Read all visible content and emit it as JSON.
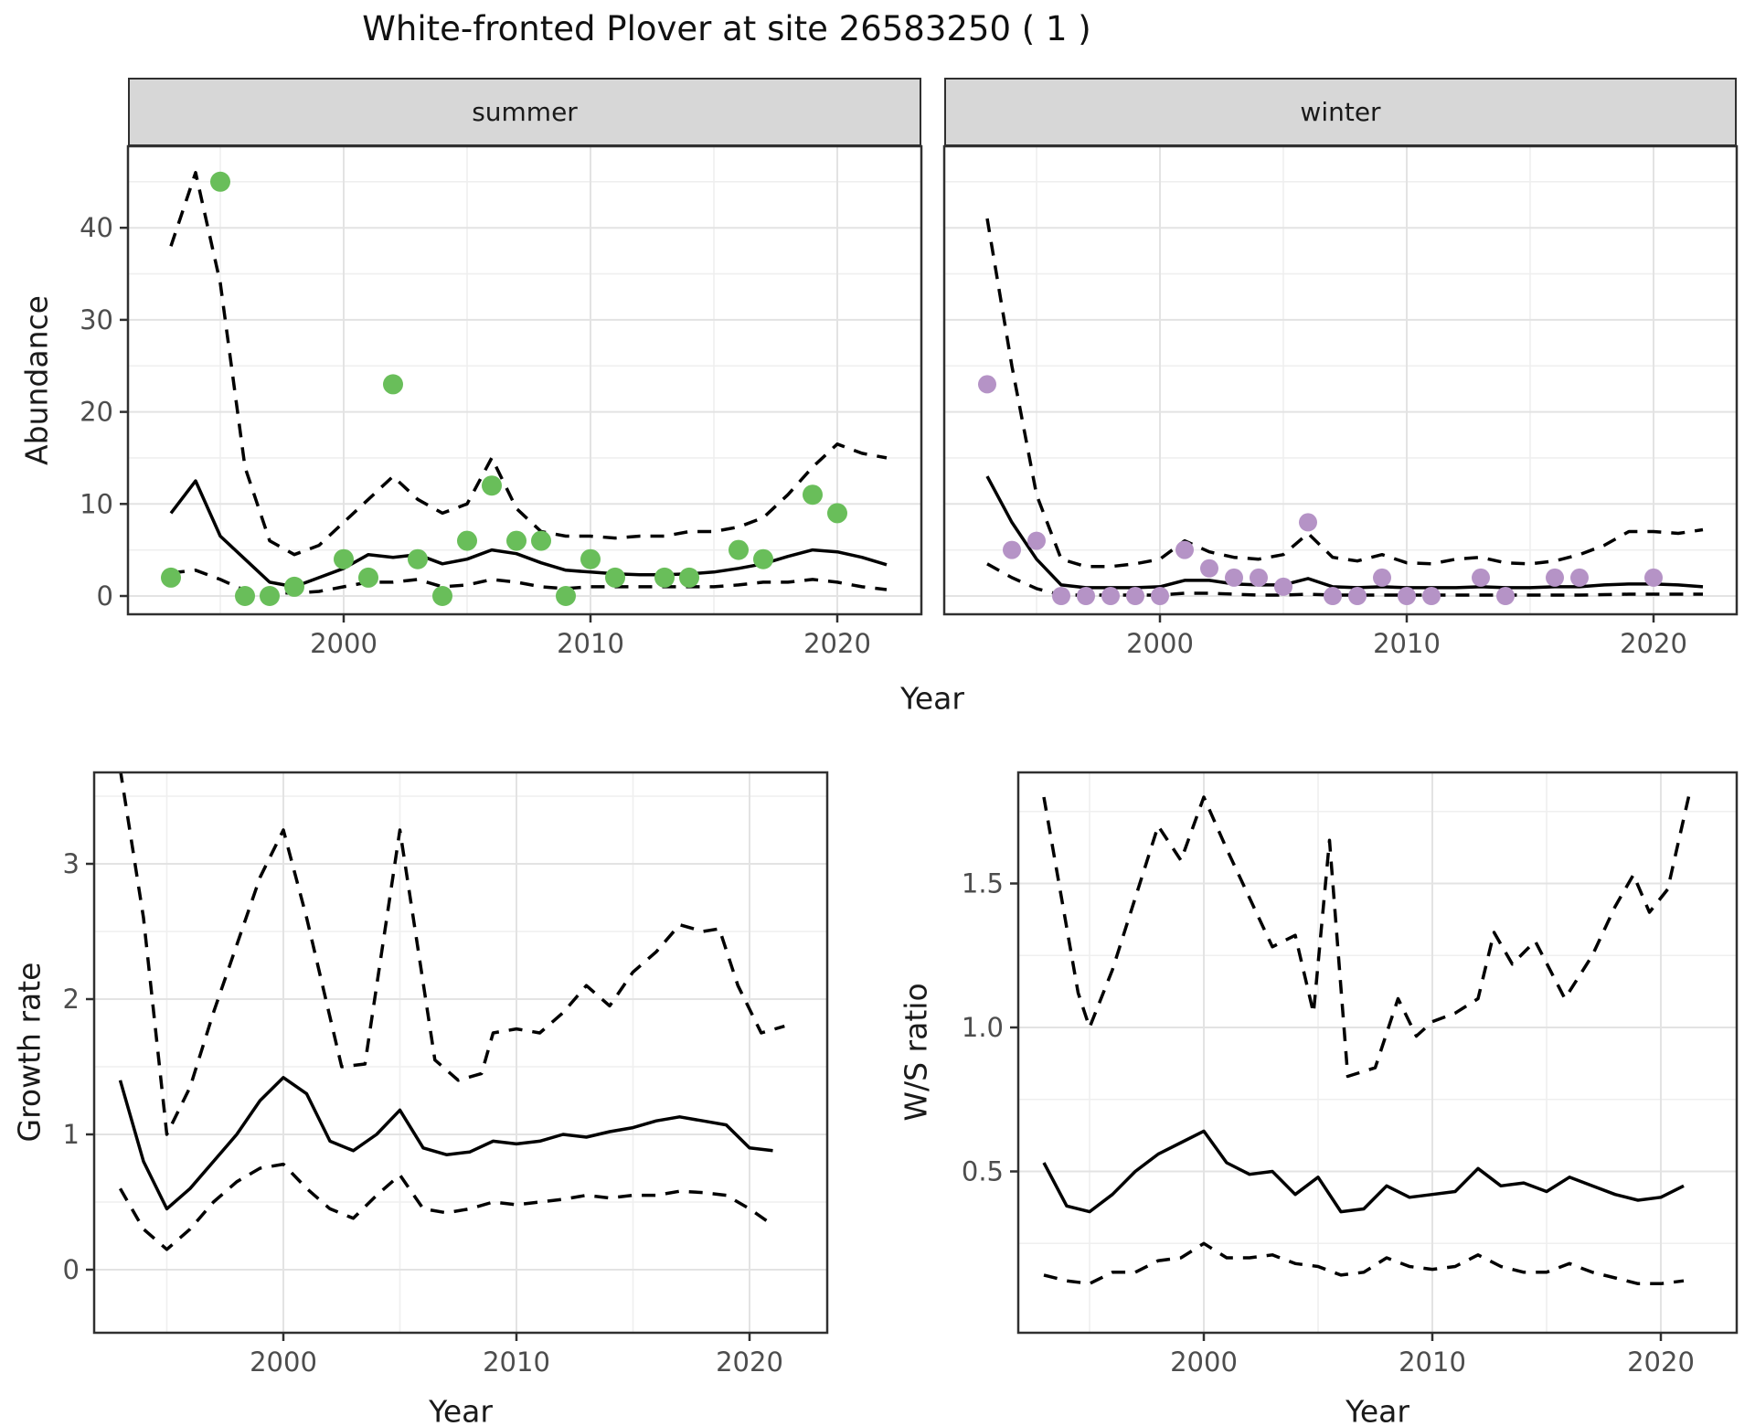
{
  "page": {
    "title": "White-fronted Plover at site 26583250 ( 1 )"
  },
  "colors": {
    "summer_point": "#69be5a",
    "winter_point": "#b593c6",
    "line": "#000000",
    "grid_major": "#e3e3e3",
    "grid_minor": "#efefef",
    "strip_bg": "#d7d7d7",
    "panel_border": "#303030",
    "tick_label": "#4d4d4d"
  },
  "chart_data": [
    {
      "id": "abundance_summer",
      "type": "line",
      "facet": "summer",
      "xlabel": "Year",
      "ylabel": "Abundance",
      "xticks": [
        2000,
        2010,
        2020
      ],
      "xminor": [
        1995,
        2005,
        2015
      ],
      "yticks": [
        0,
        10,
        20,
        30,
        40
      ],
      "ytick_labels": [
        "0",
        "10",
        "20",
        "30",
        "40"
      ],
      "yminor": [
        5,
        15,
        25,
        35,
        45
      ],
      "xlim": [
        1991.4,
        2023.3
      ],
      "ylim": [
        -2,
        48.9
      ],
      "grid": true,
      "legend": "none",
      "points": {
        "x": [
          1993,
          1995,
          1996,
          1997,
          1998,
          2000,
          2001,
          2002,
          2003,
          2004,
          2005,
          2006,
          2007,
          2008,
          2009,
          2010,
          2011,
          2013,
          2014,
          2016,
          2017,
          2019,
          2020
        ],
        "y": [
          2,
          45,
          0,
          0,
          1,
          4,
          2,
          23,
          4,
          0,
          6,
          12,
          6,
          6,
          0,
          4,
          2,
          2,
          2,
          5,
          4,
          11,
          9
        ]
      },
      "series": [
        {
          "name": "upper95",
          "style": "dashed",
          "x": [
            1993,
            1994,
            1995,
            1996,
            1997,
            1998,
            1999,
            2000,
            2001,
            2002,
            2003,
            2004,
            2005,
            2006,
            2007,
            2008,
            2009,
            2010,
            2011,
            2012,
            2013,
            2014,
            2015,
            2016,
            2017,
            2018,
            2019,
            2020,
            2021,
            2022
          ],
          "y": [
            38,
            46,
            34,
            14,
            6,
            4.5,
            5.5,
            8,
            10.5,
            13,
            10.5,
            9,
            10,
            15,
            9.5,
            7,
            6.5,
            6.5,
            6.3,
            6.5,
            6.5,
            7,
            7,
            7.5,
            8.5,
            11,
            14,
            16.5,
            15.5,
            15
          ]
        },
        {
          "name": "mean",
          "style": "solid",
          "x": [
            1993,
            1994,
            1995,
            1996,
            1997,
            1998,
            1999,
            2000,
            2001,
            2002,
            2003,
            2004,
            2005,
            2006,
            2007,
            2008,
            2009,
            2010,
            2011,
            2012,
            2013,
            2014,
            2015,
            2016,
            2017,
            2018,
            2019,
            2020,
            2021,
            2022
          ],
          "y": [
            9,
            12.5,
            6.5,
            4,
            1.5,
            1,
            2,
            3,
            4.5,
            4.2,
            4.5,
            3.5,
            4,
            5,
            4.6,
            3.6,
            2.8,
            2.6,
            2.4,
            2.3,
            2.3,
            2.4,
            2.6,
            3,
            3.5,
            4.3,
            5,
            4.8,
            4.2,
            3.4
          ]
        },
        {
          "name": "lower95",
          "style": "dashed",
          "x": [
            1993,
            1994,
            1995,
            1996,
            1997,
            1998,
            1999,
            2000,
            2001,
            2002,
            2003,
            2004,
            2005,
            2006,
            2007,
            2008,
            2009,
            2010,
            2011,
            2012,
            2013,
            2014,
            2015,
            2016,
            2017,
            2018,
            2019,
            2020,
            2021,
            2022
          ],
          "y": [
            2.5,
            2.8,
            1.8,
            0.6,
            0.4,
            0.3,
            0.5,
            1,
            1.5,
            1.5,
            1.8,
            1,
            1.2,
            1.8,
            1.5,
            1,
            0.8,
            1,
            1,
            1,
            1,
            1,
            1,
            1.2,
            1.5,
            1.5,
            1.8,
            1.5,
            1,
            0.7
          ]
        }
      ]
    },
    {
      "id": "abundance_winter",
      "type": "line",
      "facet": "winter",
      "xlabel": "Year",
      "ylabel": "Abundance",
      "xticks": [
        2000,
        2010,
        2020
      ],
      "xminor": [
        1995,
        2005,
        2015
      ],
      "yticks": [
        0,
        10,
        20,
        30,
        40
      ],
      "ytick_labels": [],
      "yminor": [
        5,
        15,
        25,
        35,
        45
      ],
      "xlim": [
        1991.4,
        2023.3
      ],
      "ylim": [
        -2,
        48.9
      ],
      "grid": true,
      "legend": "none",
      "points": {
        "x": [
          1993,
          1994,
          1995,
          1996,
          1997,
          1998,
          1999,
          2000,
          2001,
          2002,
          2003,
          2004,
          2005,
          2006,
          2007,
          2008,
          2009,
          2010,
          2011,
          2013,
          2014,
          2016,
          2017,
          2020
        ],
        "y": [
          23,
          5,
          6,
          0,
          0,
          0,
          0,
          0,
          5,
          3,
          2,
          2,
          1,
          8,
          0,
          0,
          2,
          0,
          0,
          2,
          0,
          2,
          2,
          2
        ]
      },
      "series": [
        {
          "name": "upper95",
          "style": "dashed",
          "x": [
            1993,
            1994,
            1995,
            1996,
            1997,
            1998,
            1999,
            2000,
            2001,
            2002,
            2003,
            2004,
            2005,
            2006,
            2007,
            2008,
            2009,
            2010,
            2011,
            2012,
            2013,
            2014,
            2015,
            2016,
            2017,
            2018,
            2019,
            2020,
            2021,
            2022
          ],
          "y": [
            41,
            25,
            11,
            4,
            3.2,
            3.2,
            3.5,
            4,
            6,
            4.8,
            4.2,
            4,
            4.5,
            6.8,
            4.2,
            3.8,
            4.5,
            3.6,
            3.5,
            4,
            4.2,
            3.6,
            3.5,
            3.8,
            4.5,
            5.5,
            7,
            7,
            6.8,
            7.2
          ]
        },
        {
          "name": "mean",
          "style": "solid",
          "x": [
            1993,
            1994,
            1995,
            1996,
            1997,
            1998,
            1999,
            2000,
            2001,
            2002,
            2003,
            2004,
            2005,
            2006,
            2007,
            2008,
            2009,
            2010,
            2011,
            2012,
            2013,
            2014,
            2015,
            2016,
            2017,
            2018,
            2019,
            2020,
            2021,
            2022
          ],
          "y": [
            13,
            8,
            4,
            1.2,
            0.9,
            0.9,
            0.9,
            1,
            1.7,
            1.7,
            1.3,
            1.2,
            1.2,
            1.9,
            1,
            0.9,
            1,
            0.9,
            0.9,
            0.9,
            1,
            0.9,
            0.9,
            1,
            1,
            1.2,
            1.3,
            1.3,
            1.2,
            1
          ]
        },
        {
          "name": "lower95",
          "style": "dashed",
          "x": [
            1993,
            1994,
            1995,
            1996,
            1997,
            1998,
            1999,
            2000,
            2001,
            2002,
            2003,
            2004,
            2005,
            2006,
            2007,
            2008,
            2009,
            2010,
            2011,
            2012,
            2013,
            2014,
            2015,
            2016,
            2017,
            2018,
            2019,
            2020,
            2021,
            2022
          ],
          "y": [
            3.5,
            2,
            0.8,
            0.1,
            0.1,
            0.1,
            0.1,
            0.1,
            0.3,
            0.3,
            0.2,
            0.1,
            0.1,
            0.2,
            0.1,
            0.1,
            0.1,
            0.1,
            0.1,
            0.1,
            0.1,
            0.1,
            0.1,
            0.1,
            0.1,
            0.15,
            0.2,
            0.2,
            0.2,
            0.2
          ]
        }
      ]
    },
    {
      "id": "growth_rate",
      "type": "line",
      "facet": null,
      "xlabel": "Year",
      "ylabel": "Growth rate",
      "xticks": [
        2000,
        2010,
        2020
      ],
      "xminor": [
        1995,
        2005,
        2015
      ],
      "yticks": [
        0,
        1,
        2,
        3
      ],
      "ytick_labels": [
        "0",
        "1",
        "2",
        "3"
      ],
      "yminor": [
        0.5,
        1.5,
        2.5,
        3.5
      ],
      "xlim": [
        1991.9,
        2023.4
      ],
      "ylim": [
        -0.47,
        3.68
      ],
      "grid": true,
      "legend": "none",
      "points": null,
      "series": [
        {
          "name": "upper95",
          "style": "dashed",
          "x": [
            1993,
            1994,
            1995,
            1996,
            1997,
            1998,
            1999,
            2000,
            2001,
            2002.5,
            2003.5,
            2005,
            2006.5,
            2007.5,
            2008.5,
            2009,
            2010,
            2011,
            2012,
            2013,
            2014,
            2015,
            2016,
            2017,
            2018,
            2018.7,
            2019.5,
            2020.5,
            2021.5
          ],
          "y": [
            3.7,
            2.6,
            1.0,
            1.35,
            1.9,
            2.4,
            2.9,
            3.25,
            2.6,
            1.5,
            1.52,
            3.25,
            1.55,
            1.4,
            1.45,
            1.75,
            1.78,
            1.75,
            1.9,
            2.1,
            1.95,
            2.2,
            2.35,
            2.55,
            2.5,
            2.52,
            2.1,
            1.75,
            1.8
          ]
        },
        {
          "name": "mean",
          "style": "solid",
          "x": [
            1993,
            1994,
            1995,
            1996,
            1997,
            1998,
            1999,
            2000,
            2001,
            2002,
            2003,
            2004,
            2005,
            2006,
            2007,
            2008,
            2009,
            2010,
            2011,
            2012,
            2013,
            2014,
            2015,
            2016,
            2017,
            2018,
            2019,
            2020,
            2021
          ],
          "y": [
            1.4,
            0.8,
            0.45,
            0.6,
            0.8,
            1.0,
            1.25,
            1.42,
            1.3,
            0.95,
            0.88,
            1.0,
            1.18,
            0.9,
            0.85,
            0.87,
            0.95,
            0.93,
            0.95,
            1.0,
            0.98,
            1.02,
            1.05,
            1.1,
            1.13,
            1.1,
            1.07,
            0.9,
            0.88
          ]
        },
        {
          "name": "lower95",
          "style": "dashed",
          "x": [
            1993,
            1994,
            1995,
            1996,
            1997,
            1998,
            1999,
            2000,
            2001,
            2002,
            2003,
            2004,
            2005,
            2006,
            2007,
            2008,
            2009,
            2010,
            2011,
            2012,
            2013,
            2014,
            2015,
            2016,
            2017,
            2018,
            2019,
            2020,
            2021
          ],
          "y": [
            0.6,
            0.3,
            0.15,
            0.3,
            0.5,
            0.65,
            0.75,
            0.78,
            0.6,
            0.45,
            0.38,
            0.55,
            0.7,
            0.45,
            0.42,
            0.45,
            0.5,
            0.48,
            0.5,
            0.52,
            0.55,
            0.53,
            0.55,
            0.55,
            0.58,
            0.57,
            0.55,
            0.45,
            0.33
          ]
        }
      ]
    },
    {
      "id": "ws_ratio",
      "type": "line",
      "facet": null,
      "xlabel": "Year",
      "ylabel": "W/S ratio",
      "xticks": [
        2000,
        2010,
        2020
      ],
      "xminor": [
        1995,
        2005,
        2015
      ],
      "yticks": [
        0.5,
        1.0,
        1.5
      ],
      "ytick_labels": [
        "0.5",
        "1.0",
        "1.5"
      ],
      "yminor": [
        0.25,
        0.75,
        1.25,
        1.75
      ],
      "xlim": [
        1991.9,
        2023.4
      ],
      "ylim": [
        -0.06,
        1.88
      ],
      "grid": true,
      "legend": "none",
      "points": null,
      "series": [
        {
          "name": "upper95",
          "style": "dashed",
          "x": [
            1993,
            1994.5,
            1995,
            1996,
            1997,
            1998,
            1999,
            2000,
            2001,
            2002,
            2003,
            2004,
            2004.8,
            2005.5,
            2006.3,
            2007.5,
            2008.5,
            2009.3,
            2010,
            2011,
            2012,
            2012.7,
            2013.5,
            2014.5,
            2015.8,
            2017,
            2018,
            2018.8,
            2019.5,
            2020.3,
            2021.3
          ],
          "y": [
            1.8,
            1.12,
            1.0,
            1.2,
            1.45,
            1.7,
            1.58,
            1.8,
            1.62,
            1.45,
            1.28,
            1.32,
            1.05,
            1.65,
            0.83,
            0.86,
            1.1,
            0.97,
            1.02,
            1.05,
            1.1,
            1.33,
            1.22,
            1.3,
            1.1,
            1.25,
            1.42,
            1.53,
            1.4,
            1.48,
            1.83
          ]
        },
        {
          "name": "mean",
          "style": "solid",
          "x": [
            1993,
            1994,
            1995,
            1996,
            1997,
            1998,
            1999,
            2000,
            2001,
            2002,
            2003,
            2004,
            2005,
            2006,
            2007,
            2008,
            2009,
            2010,
            2011,
            2012,
            2013,
            2014,
            2015,
            2016,
            2017,
            2018,
            2019,
            2020,
            2021
          ],
          "y": [
            0.53,
            0.38,
            0.36,
            0.42,
            0.5,
            0.56,
            0.6,
            0.64,
            0.53,
            0.49,
            0.5,
            0.42,
            0.48,
            0.36,
            0.37,
            0.45,
            0.41,
            0.42,
            0.43,
            0.51,
            0.45,
            0.46,
            0.43,
            0.48,
            0.45,
            0.42,
            0.4,
            0.41,
            0.45
          ]
        },
        {
          "name": "lower95",
          "style": "dashed",
          "x": [
            1993,
            1994,
            1995,
            1996,
            1997,
            1998,
            1999,
            2000,
            2001,
            2002,
            2003,
            2004,
            2005,
            2006,
            2007,
            2008,
            2009,
            2010,
            2011,
            2012,
            2013,
            2014,
            2015,
            2016,
            2017,
            2018,
            2019,
            2020,
            2021
          ],
          "y": [
            0.14,
            0.12,
            0.11,
            0.15,
            0.15,
            0.19,
            0.2,
            0.25,
            0.2,
            0.2,
            0.21,
            0.18,
            0.17,
            0.14,
            0.15,
            0.2,
            0.17,
            0.16,
            0.17,
            0.21,
            0.17,
            0.15,
            0.15,
            0.18,
            0.15,
            0.13,
            0.11,
            0.11,
            0.12
          ]
        }
      ]
    }
  ]
}
